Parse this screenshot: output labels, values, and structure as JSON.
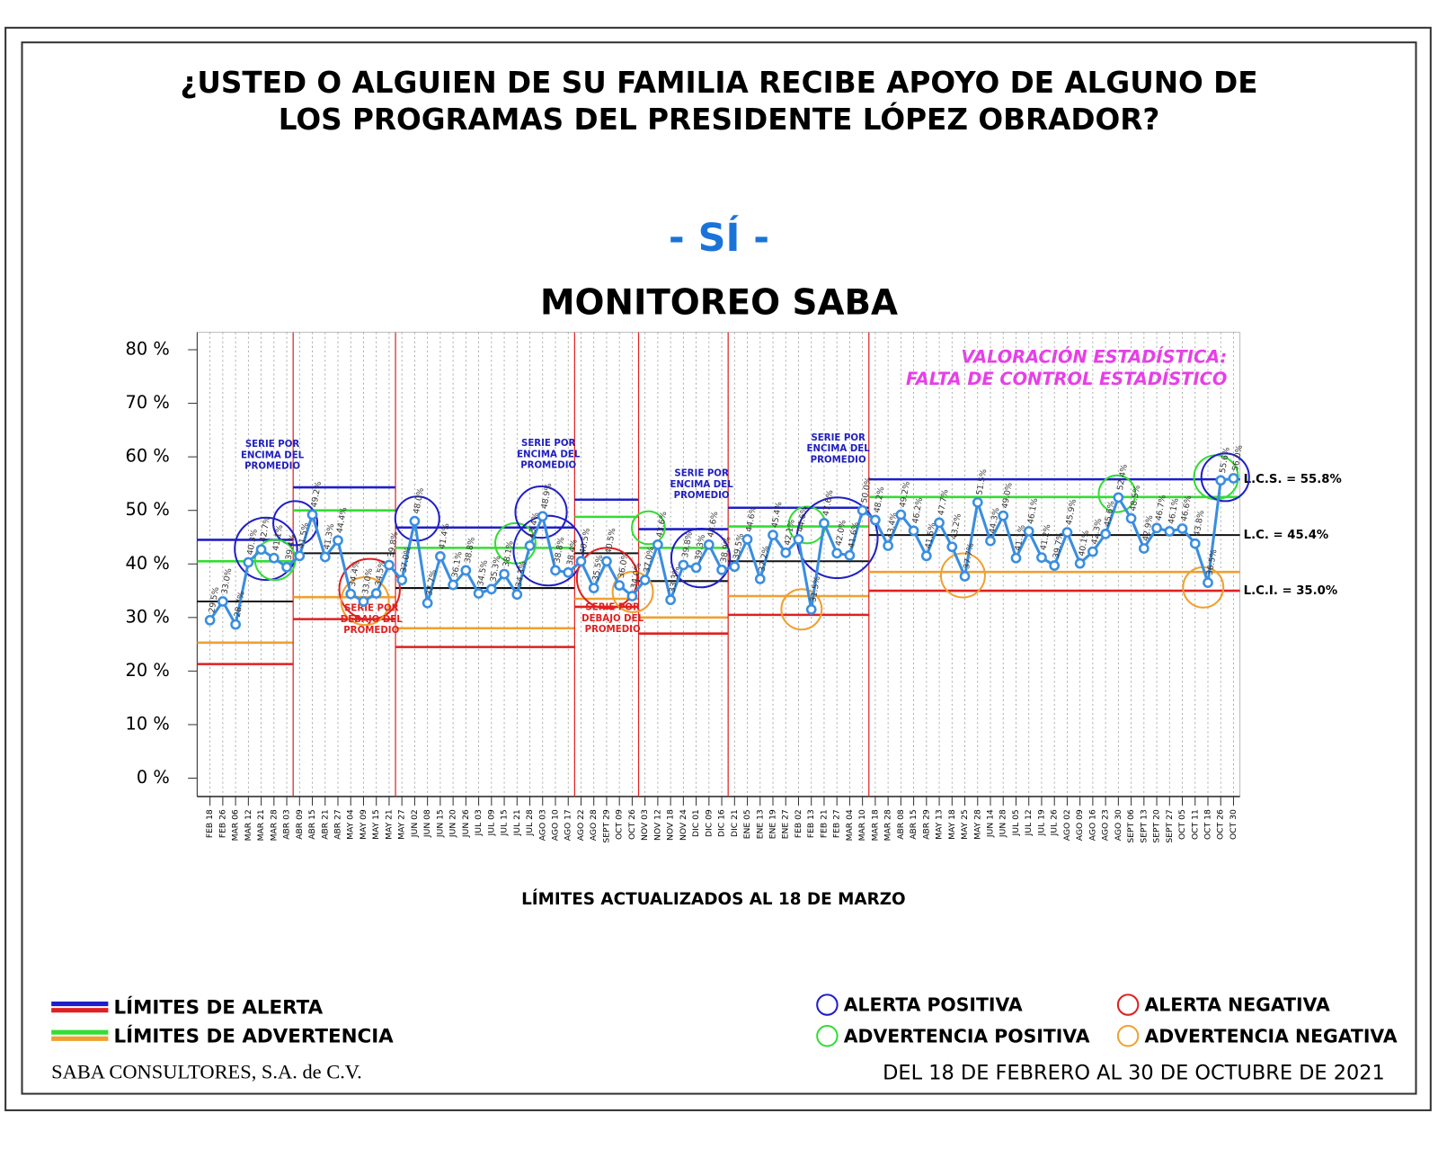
{
  "chart_data": {
    "type": "line",
    "title": "¿USTED O ALGUIEN DE SU FAMILIA RECIBE APOYO DE ALGUNO DE LOS PROGRAMAS DEL PRESIDENTE LÓPEZ OBRADOR?",
    "subtitle": "- SÍ -",
    "chart_title": "MONITOREO SABA",
    "assessment": [
      "VALORACIÓN ESTADÍSTICA:",
      "FALTA DE CONTROL ESTADÍSTICO"
    ],
    "x_note": "LÍMITES ACTUALIZADOS AL  18  DE  MARZO",
    "categories": [
      "FEB 18",
      "FEB 26",
      "MAR 06",
      "MAR 12",
      "MAR 21",
      "MAR 28",
      "ABR 03",
      "ABR 09",
      "ABR 15",
      "ABR 21",
      "ABR 27",
      "MAY 04",
      "MAY 09",
      "MAY 15",
      "MAY 21",
      "MAY 27",
      "JUN 02",
      "JUN 08",
      "JUN 15",
      "JUN 20",
      "JUN 26",
      "JUL 03",
      "JUL 09",
      "JUL 15",
      "JUL 21",
      "JUL 28",
      "AGO 03",
      "AGO 10",
      "AGO 17",
      "AGO 22",
      "AGO 28",
      "SEPT 29",
      "OCT 09",
      "OCT 26",
      "NOV 03",
      "NOV 12",
      "NOV 18",
      "NOV 24",
      "DIC 01",
      "DIC 09",
      "DIC 16",
      "DIC 21",
      "ENE 05",
      "ENE 13",
      "ENE 19",
      "ENE 27",
      "FEB 02",
      "FEB 13",
      "FEB 21",
      "FEB 27",
      "MAR 04",
      "MAR 10",
      "MAR 18",
      "MAR 28",
      "ABR 08",
      "ABR 15",
      "ABR 29",
      "MAY 13",
      "MAY 18",
      "MAY 25",
      "MAY 28",
      "JUN 14",
      "JUN 28",
      "JUL 05",
      "JUL 12",
      "JUL 19",
      "JUL 26",
      "AGO 02",
      "AGO 09",
      "AGO 16",
      "AGO 23",
      "AGO 30",
      "SEPT 06",
      "SEPT 13",
      "SEPT 20",
      "SEPT 27",
      "OCT 05",
      "OCT 11",
      "OCT 18",
      "OCT 26",
      "OCT 30"
    ],
    "series": [
      {
        "name": "SÍ",
        "color": "#3a8ee0",
        "values": [
          29.5,
          33.0,
          28.7,
          40.3,
          42.7,
          41.1,
          39.4,
          41.5,
          49.2,
          41.3,
          44.4,
          34.4,
          33.0,
          34.5,
          39.8,
          37.0,
          48.0,
          32.7,
          41.4,
          36.1,
          38.8,
          34.5,
          35.3,
          38.1,
          34.3,
          43.4,
          48.9,
          38.8,
          38.4,
          40.5,
          35.5,
          40.5,
          36.0,
          34.0,
          37.0,
          43.6,
          33.3,
          39.8,
          39.3,
          43.6,
          38.9,
          39.5,
          44.6,
          37.2,
          45.4,
          42.1,
          44.6,
          31.5,
          47.6,
          42.0,
          41.6,
          50.0,
          48.2,
          43.4,
          49.2,
          46.2,
          41.5,
          47.7,
          43.2,
          37.7,
          51.5,
          44.3,
          49.0,
          41.1,
          46.1,
          41.2,
          39.7,
          45.9,
          40.1,
          42.3,
          45.6,
          52.4,
          48.5,
          42.9,
          46.7,
          46.1,
          46.6,
          43.8,
          36.5,
          55.6,
          56.0
        ],
        "value_labels": [
          "29.5%",
          "33.0%",
          "28.7%",
          "40.3%",
          "42.7%",
          "41.1%",
          "39.4%",
          "41.5%",
          "49.2%",
          "41.3%",
          "44.4%",
          "34.4%",
          "33.0%",
          "34.5%",
          "39.8%",
          "37.0%",
          "48.0%",
          "32.7%",
          "41.4%",
          "36.1%",
          "38.8%",
          "34.5%",
          "35.3%",
          "38.1%",
          "34.3%",
          "43.4%",
          "48.9%",
          "38.8%",
          "38.4%",
          "40.5%",
          "35.5%",
          "40.5%",
          "36.0%",
          "34.0%",
          "37.0%",
          "43.6%",
          "33.3%",
          "39.8%",
          "39.3%",
          "43.6%",
          "38.9%",
          "39.5%",
          "44.6%",
          "37.2%",
          "45.4%",
          "42.1%",
          "44.6%",
          "31.5%",
          "47.6%",
          "42.0%",
          "41.6%",
          "50.0%",
          "48.2%",
          "43.4%",
          "49.2%",
          "46.2%",
          "41.5%",
          "47.7%",
          "43.2%",
          "37.7%",
          "51.5%",
          "44.3%",
          "49.0%",
          "41.1%",
          "46.1%",
          "41.2%",
          "39.7%",
          "45.9%",
          "40.1%",
          "42.3%",
          "45.6%",
          "52.4%",
          "48.5%",
          "42.9%",
          "46.7%",
          "46.1%",
          "46.6%",
          "43.8%",
          "36.5%",
          "55.6%",
          "56.0%"
        ]
      }
    ],
    "limit_colors": {
      "lcs": "#1f1fc8",
      "lsa": "#33dd33",
      "lc": "#111111",
      "lia": "#f0a030",
      "lci": "#e02020"
    },
    "phases": [
      {
        "start": 0,
        "end": 6,
        "lcs": 44.5,
        "lsa": 40.5,
        "lc": 33.0,
        "lia": 25.3,
        "lci": 21.3
      },
      {
        "start": 7,
        "end": 14,
        "lcs": 54.3,
        "lsa": 50.0,
        "lc": 42.0,
        "lia": 33.8,
        "lci": 29.7
      },
      {
        "start": 15,
        "end": 28,
        "lcs": 46.8,
        "lsa": 43.0,
        "lc": 35.5,
        "lia": 28.0,
        "lci": 24.5
      },
      {
        "start": 29,
        "end": 33,
        "lcs": 52.0,
        "lsa": 48.8,
        "lc": 42.0,
        "lia": 33.5,
        "lci": 32.0
      },
      {
        "start": 34,
        "end": 40,
        "lcs": 46.5,
        "lsa": 43.0,
        "lc": 36.8,
        "lia": 30.0,
        "lci": 27.0
      },
      {
        "start": 41,
        "end": 51,
        "lcs": 50.5,
        "lsa": 47.0,
        "lc": 40.5,
        "lia": 34.0,
        "lci": 30.5
      },
      {
        "start": 52,
        "end": 80,
        "lcs": 55.8,
        "lsa": 52.5,
        "lc": 45.4,
        "lia": 38.5,
        "lci": 35.0
      }
    ],
    "limit_labels": [
      "L.C.S. =  55.8%",
      "L.C. =  45.4%",
      "L.C.I. =  35.0%"
    ],
    "notes": [
      "SERIE POR ENCIMA DEL PROMEDIO",
      "SERIE POR DEBAJO DEL PROMEDIO",
      "SERIE POR ENCIMA DEL PROMEDIO",
      "SERIE POR DEBAJO DEL PROMEDIO",
      "SERIE POR ENCIMA DEL PROMEDIO",
      "SERIE POR ENCIMA DEL PROMEDIO"
    ],
    "ylim": [
      0,
      80
    ],
    "yticks": [
      {
        "value": 0,
        "label": "0 %"
      },
      {
        "value": 10,
        "label": "10 %"
      },
      {
        "value": 20,
        "label": "20 %"
      },
      {
        "value": 30,
        "label": "30 %"
      },
      {
        "value": 40,
        "label": "40 %"
      },
      {
        "value": 50,
        "label": "50 %"
      },
      {
        "value": 60,
        "label": "60 %"
      },
      {
        "value": 70,
        "label": "70 %"
      },
      {
        "value": 80,
        "label": "80 %"
      }
    ],
    "grid": true,
    "legend": {
      "lines": [
        "LÍMITES DE ALERTA",
        "LÍMITES DE ADVERTENCIA"
      ],
      "circles": [
        "ALERTA POSITIVA",
        "ALERTA NEGATIVA",
        "ADVERTENCIA POSITIVA",
        "ADVERTENCIA NEGATIVA"
      ]
    },
    "footer": {
      "left": "SABA CONSULTORES, S.A. de C.V.",
      "right": "DEL 18 DE FEBRERO AL 30 DE OCTUBRE DE 2021"
    }
  }
}
